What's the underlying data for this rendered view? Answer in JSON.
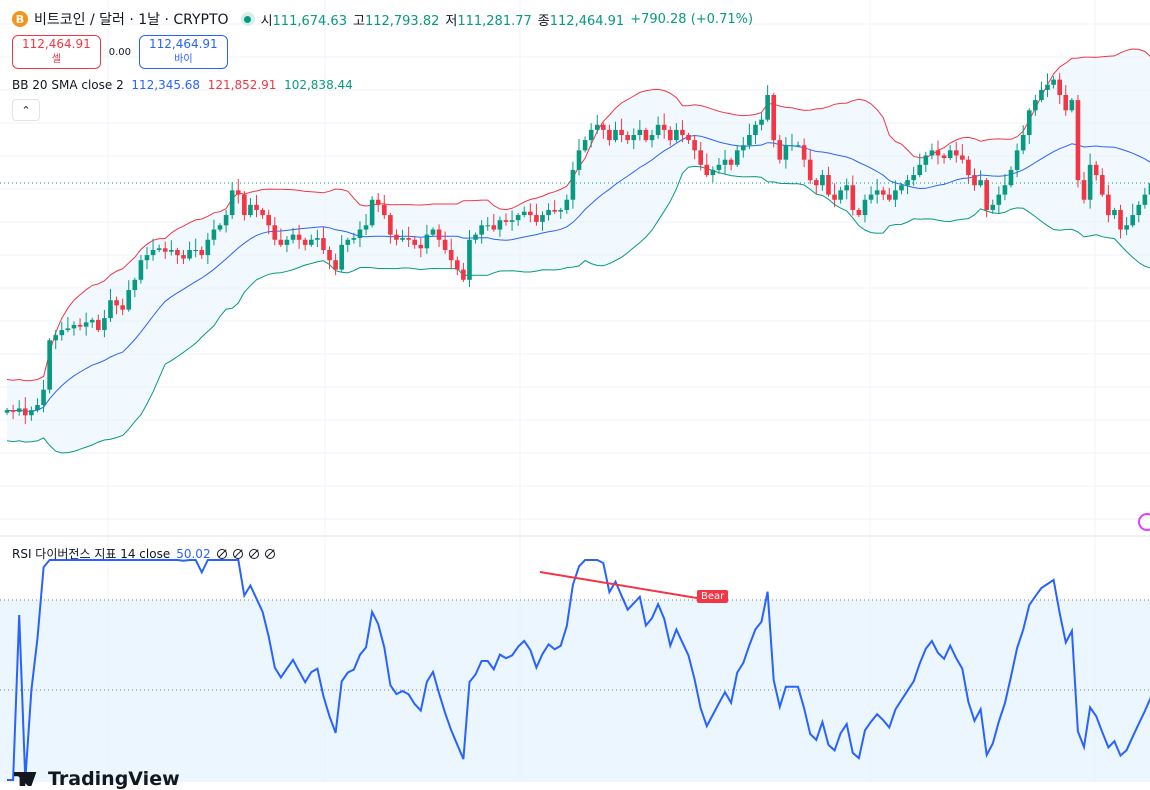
{
  "header": {
    "symbol": "비트코인 / 달러 · 1날 · CRYPTO",
    "coin_icon": "B",
    "open_label": "시",
    "open": "111,674.63",
    "high_label": "고",
    "high": "112,793.82",
    "low_label": "저",
    "low": "111,281.77",
    "close_label": "종",
    "close": "112,464.91",
    "change": "+790.28 (+0.71%)"
  },
  "trade": {
    "sell_price": "112,464.91",
    "sell_label": "셀",
    "spread": "0.00",
    "buy_price": "112,464.91",
    "buy_label": "바이"
  },
  "bb_legend": {
    "name": "BB 20 SMA close 2",
    "basis": "112,345.68",
    "upper": "121,852.91",
    "lower": "102,838.44"
  },
  "collapse_icon": "chevron-up-icon",
  "rsi_legend": {
    "name": "RSI 다이버전스 지표 14 close",
    "value": "50.02"
  },
  "divergence_label": "Bear",
  "logo": "TradingView",
  "colors": {
    "up": "#089981",
    "down": "#f23645",
    "basis": "#2962ff",
    "upper": "#f23645",
    "lower": "#089981",
    "rsi": "#2962ff",
    "band_fill": "#e3f2fd"
  },
  "chart_data": {
    "type": "candlestick",
    "title": "BTC/USD 1D",
    "last_close": 112464.91,
    "closes_k": [
      85.8,
      85.6,
      86.0,
      85.2,
      85.8,
      86.4,
      88.2,
      94.0,
      94.6,
      95.2,
      95.4,
      95.8,
      95.6,
      96.1,
      96.4,
      95.2,
      96.6,
      98.7,
      98.1,
      97.6,
      99.9,
      101.1,
      103.4,
      104.0,
      104.6,
      104.8,
      104.4,
      104.6,
      104.0,
      103.6,
      104.6,
      104.6,
      104.0,
      105.8,
      107.0,
      107.5,
      108.7,
      111.6,
      111.1,
      108.7,
      109.9,
      109.3,
      108.7,
      107.5,
      105.8,
      105.2,
      105.8,
      106.4,
      105.8,
      105.2,
      105.8,
      106.0,
      104.6,
      103.4,
      102.3,
      105.2,
      105.8,
      106.0,
      107.0,
      107.5,
      110.5,
      109.9,
      108.7,
      106.4,
      105.8,
      106.0,
      105.8,
      105.2,
      104.8,
      106.4,
      107.0,
      105.8,
      104.6,
      103.4,
      102.3,
      101.1,
      105.8,
      106.4,
      107.5,
      107.5,
      107.0,
      108.1,
      107.9,
      108.1,
      108.7,
      109.1,
      108.7,
      107.9,
      108.7,
      109.3,
      109.1,
      109.3,
      110.5,
      114.0,
      116.3,
      117.5,
      118.7,
      119.3,
      118.7,
      117.5,
      118.7,
      118.1,
      117.5,
      118.1,
      118.7,
      117.5,
      118.1,
      119.3,
      118.7,
      117.5,
      118.7,
      118.1,
      117.5,
      116.3,
      114.6,
      113.4,
      114.0,
      114.6,
      115.2,
      114.6,
      116.3,
      116.9,
      118.1,
      119.3,
      119.9,
      122.8,
      117.5,
      115.2,
      116.9,
      116.9,
      116.9,
      115.2,
      112.8,
      112.2,
      113.4,
      111.1,
      110.5,
      111.6,
      112.2,
      109.3,
      108.7,
      110.5,
      111.1,
      111.6,
      111.1,
      110.5,
      111.6,
      112.2,
      112.8,
      113.4,
      114.6,
      115.7,
      116.3,
      115.7,
      115.4,
      116.3,
      115.7,
      115.2,
      113.4,
      112.2,
      112.8,
      109.3,
      109.9,
      111.1,
      112.2,
      114.0,
      116.3,
      118.1,
      121.0,
      122.2,
      123.4,
      124.0,
      124.6,
      122.8,
      121.0,
      122.2,
      112.8,
      110.5,
      114.6,
      113.4,
      111.1,
      108.7,
      109.3,
      107.0,
      107.5,
      108.7,
      109.9,
      111.1,
      112.46
    ],
    "bb": {
      "length": 20,
      "mult": 2
    },
    "rsi": {
      "length": 14,
      "levels": [
        70,
        50
      ]
    }
  }
}
